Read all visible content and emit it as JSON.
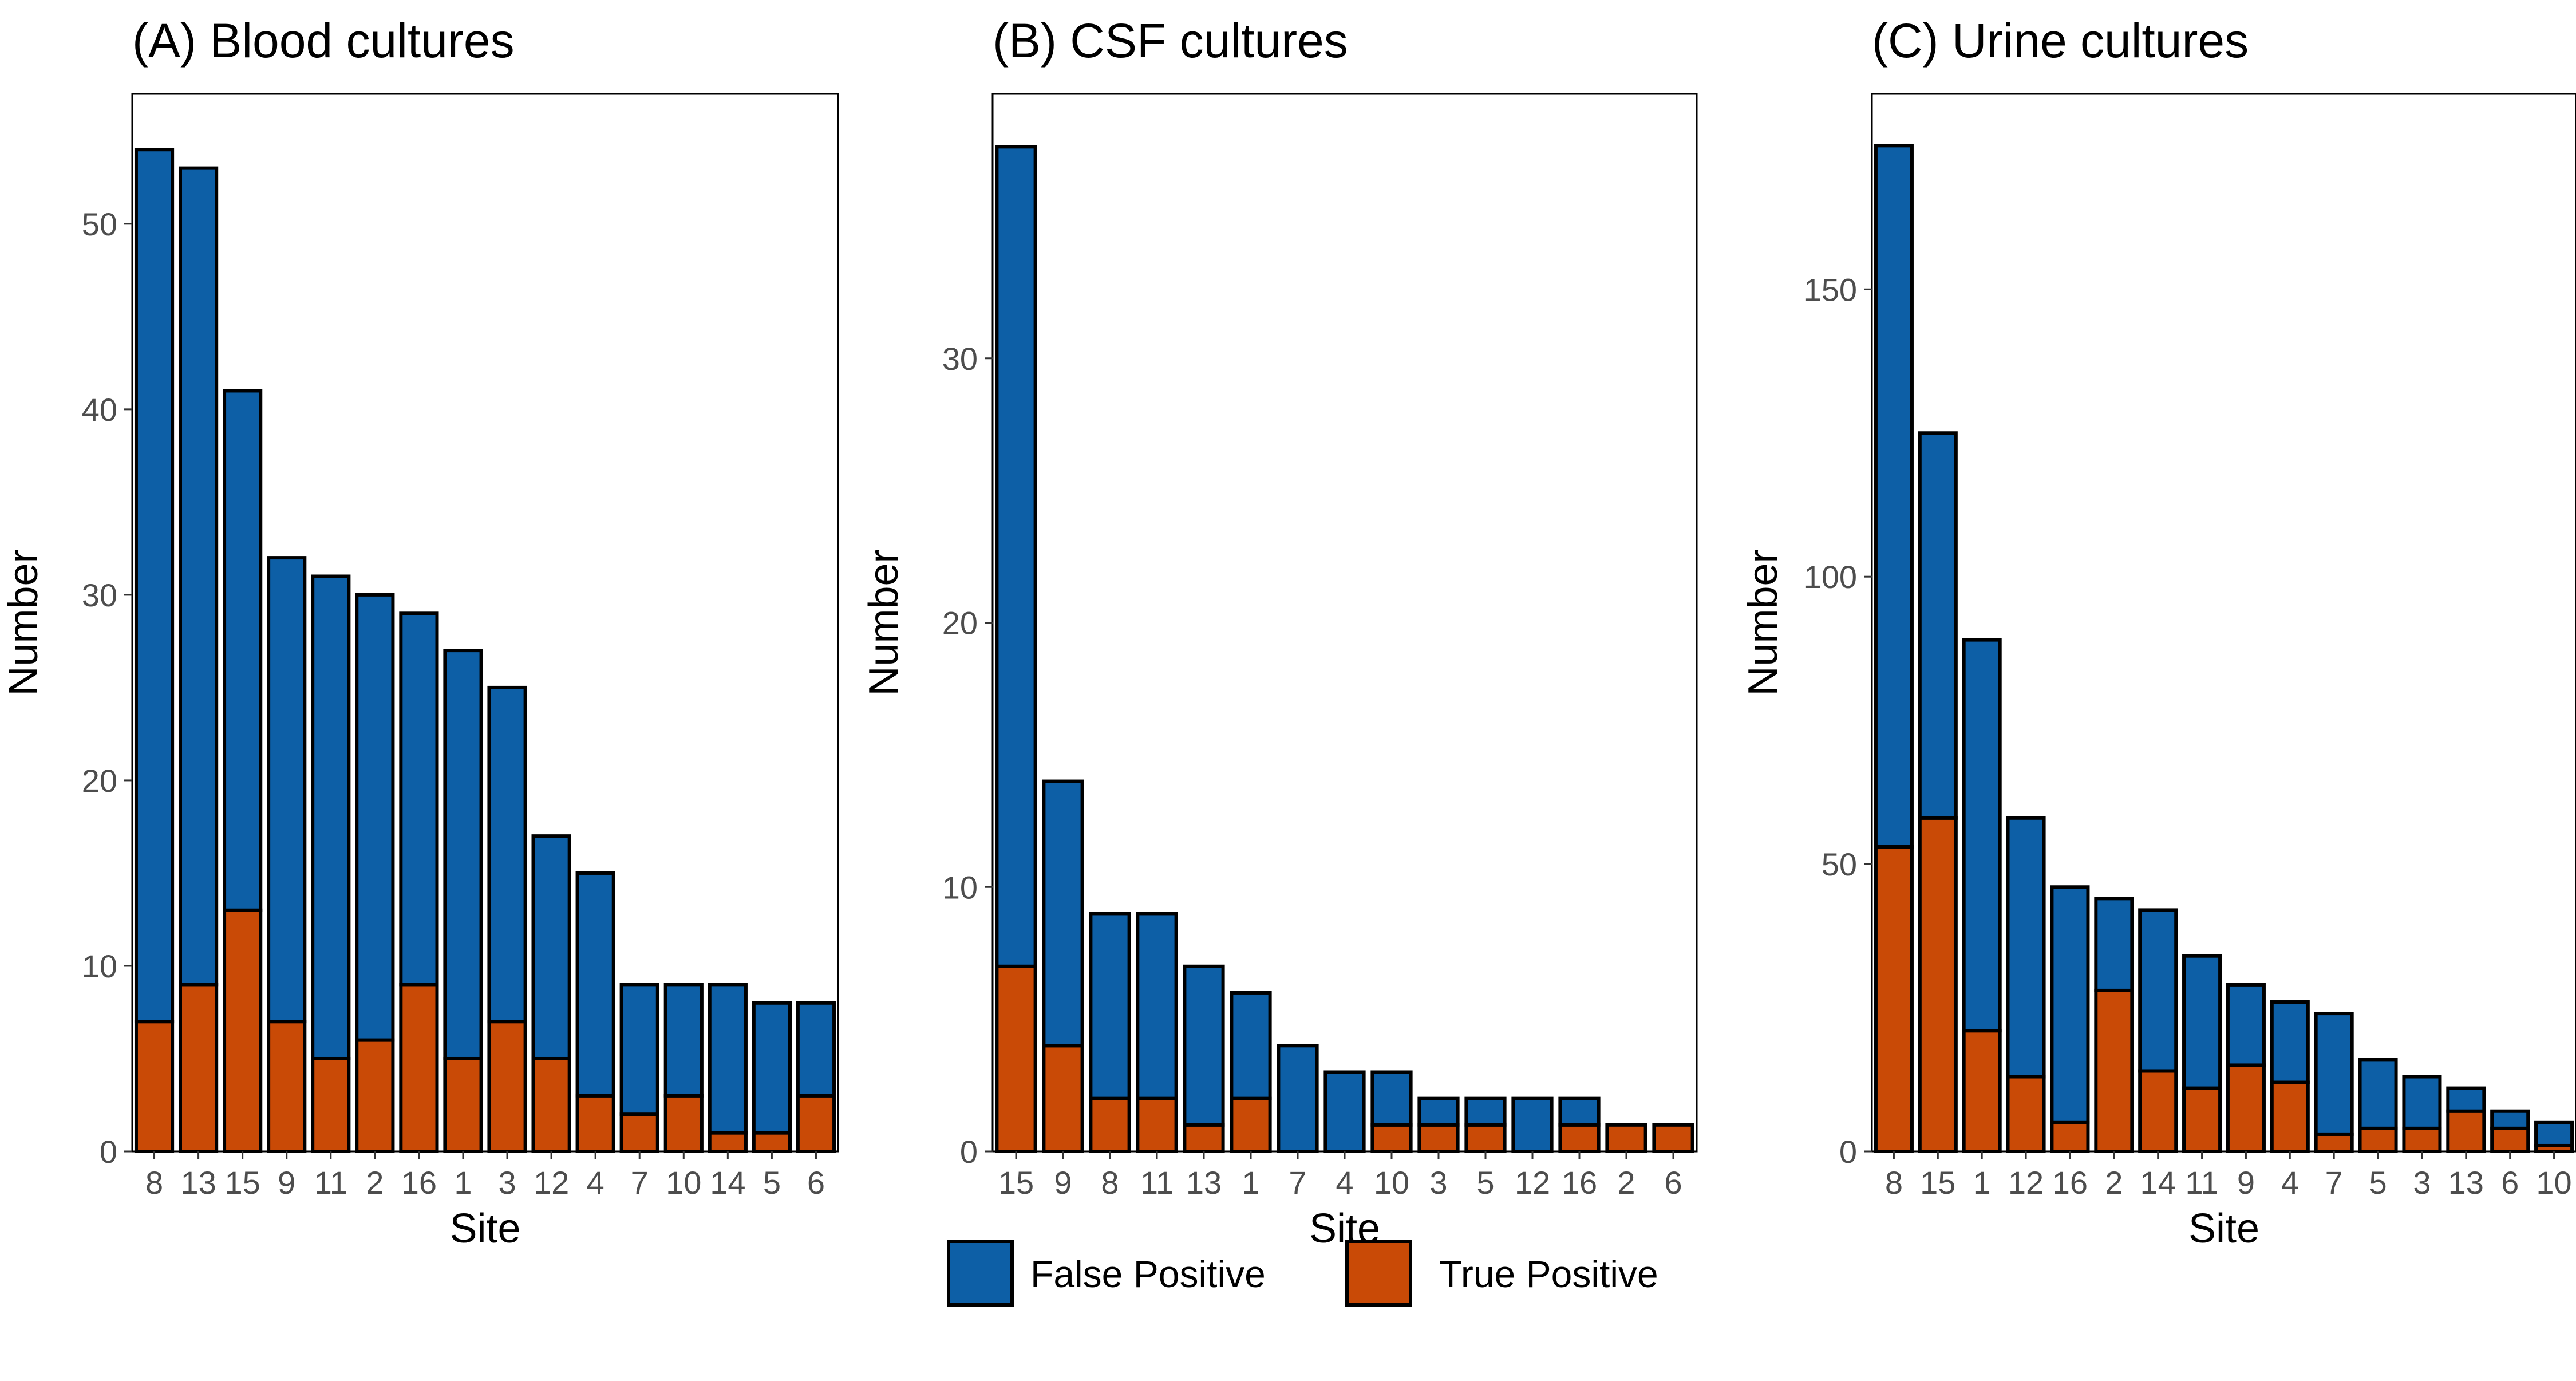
{
  "colors": {
    "false_positive": "#0d5fa6",
    "true_positive": "#c94a06",
    "outline": "#000000",
    "tick_text": "#4d4d4d"
  },
  "legend": {
    "position": "bottom",
    "items": [
      {
        "key": "false_positive",
        "label": "False Positive"
      },
      {
        "key": "true_positive",
        "label": "True Positive"
      }
    ]
  },
  "chart_data": [
    {
      "type": "bar",
      "stacked": true,
      "title": "(A) Blood cultures",
      "xlabel": "Site",
      "ylabel": "Number",
      "ylim": [
        0,
        57
      ],
      "yticks": [
        0,
        10,
        20,
        30,
        40,
        50
      ],
      "categories": [
        "8",
        "13",
        "15",
        "9",
        "11",
        "2",
        "16",
        "1",
        "3",
        "12",
        "4",
        "7",
        "10",
        "14",
        "5",
        "6"
      ],
      "series": [
        {
          "name": "True Positive",
          "key": "true_positive",
          "values": [
            7,
            9,
            13,
            7,
            5,
            6,
            9,
            5,
            7,
            5,
            3,
            2,
            3,
            1,
            1,
            3
          ]
        },
        {
          "name": "False Positive",
          "key": "false_positive",
          "values": [
            47,
            44,
            28,
            25,
            26,
            24,
            20,
            22,
            18,
            12,
            12,
            7,
            6,
            8,
            7,
            5
          ]
        }
      ]
    },
    {
      "type": "bar",
      "stacked": true,
      "title": "(B) CSF cultures",
      "xlabel": "Site",
      "ylabel": "Number",
      "ylim": [
        0,
        40
      ],
      "yticks": [
        0,
        10,
        20,
        30
      ],
      "categories": [
        "15",
        "9",
        "8",
        "11",
        "13",
        "1",
        "7",
        "4",
        "10",
        "3",
        "5",
        "12",
        "16",
        "2",
        "6"
      ],
      "series": [
        {
          "name": "True Positive",
          "key": "true_positive",
          "values": [
            7,
            4,
            2,
            2,
            1,
            2,
            0,
            0,
            1,
            1,
            1,
            0,
            1,
            1,
            1
          ]
        },
        {
          "name": "False Positive",
          "key": "false_positive",
          "values": [
            31,
            10,
            7,
            7,
            6,
            4,
            4,
            3,
            2,
            1,
            1,
            2,
            1,
            0,
            0
          ]
        }
      ]
    },
    {
      "type": "bar",
      "stacked": true,
      "title": "(C) Urine cultures",
      "xlabel": "Site",
      "ylabel": "Number",
      "ylim": [
        0,
        184
      ],
      "yticks": [
        0,
        50,
        100,
        150
      ],
      "categories": [
        "8",
        "15",
        "1",
        "12",
        "16",
        "2",
        "14",
        "11",
        "9",
        "4",
        "7",
        "5",
        "3",
        "13",
        "6",
        "10"
      ],
      "series": [
        {
          "name": "True Positive",
          "key": "true_positive",
          "values": [
            53,
            58,
            21,
            13,
            5,
            28,
            14,
            11,
            15,
            12,
            3,
            4,
            4,
            7,
            4,
            1
          ]
        },
        {
          "name": "False Positive",
          "key": "false_positive",
          "values": [
            122,
            67,
            68,
            45,
            41,
            16,
            28,
            23,
            14,
            14,
            21,
            12,
            9,
            4,
            3,
            4
          ]
        }
      ]
    }
  ]
}
